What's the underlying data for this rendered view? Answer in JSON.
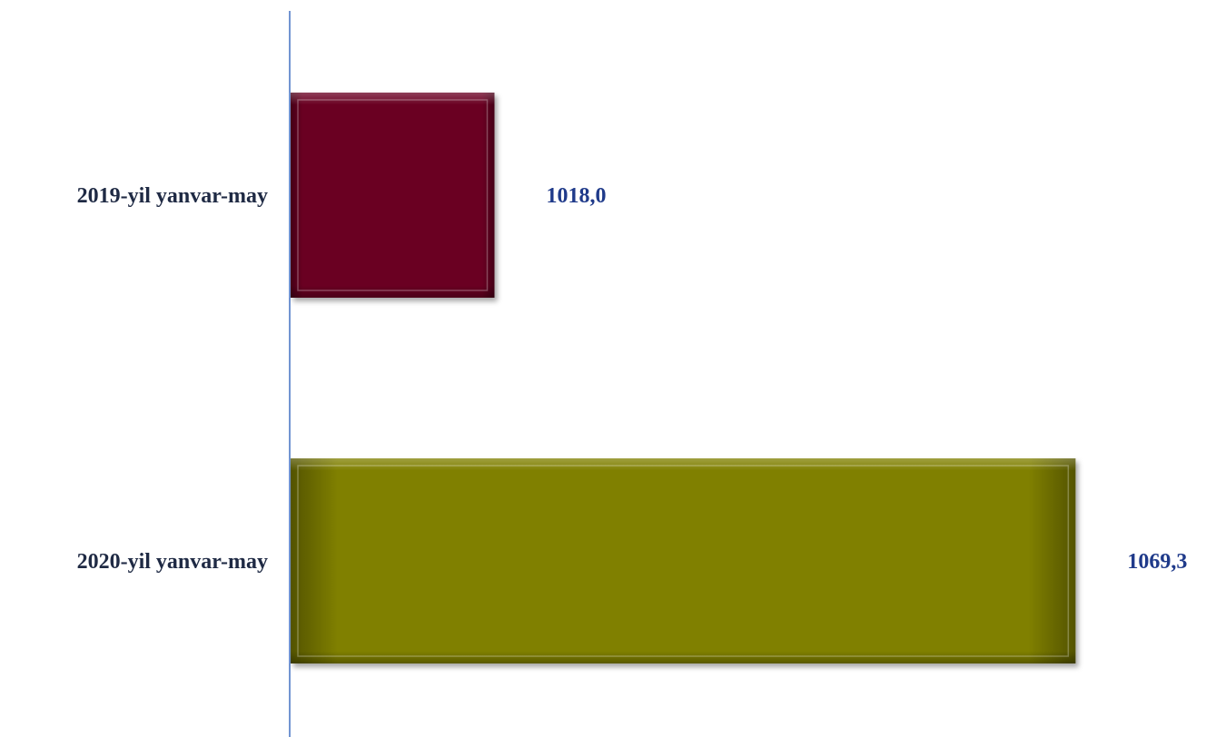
{
  "chart_data": {
    "type": "bar",
    "orientation": "horizontal",
    "categories": [
      "2019-yil yanvar-may",
      "2020-yil yanvar-may"
    ],
    "values": [
      1018.0,
      1069.3
    ],
    "value_labels": [
      "1018,0",
      "1069,3"
    ],
    "colors": [
      "#6b0020",
      "#808000"
    ],
    "axis_color": "#4472c4",
    "xlim": [
      1000,
      1072
    ],
    "grid": false,
    "legend": "none"
  }
}
